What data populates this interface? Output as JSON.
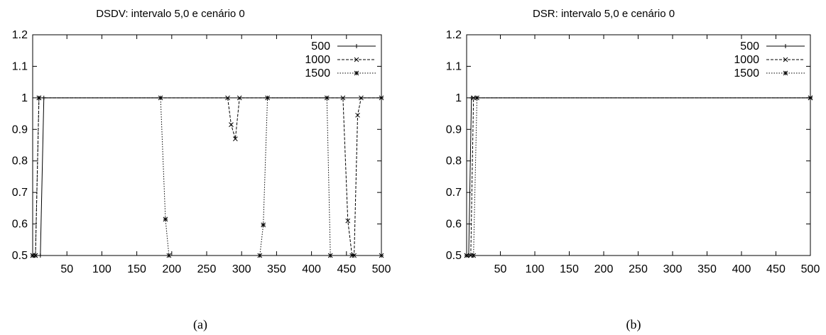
{
  "chart_data": [
    {
      "type": "line",
      "title": "DSDV: intervalo 5,0 e cenário 0",
      "caption": "(a)",
      "xlim": [
        1,
        500
      ],
      "ylim": [
        0.5,
        1.2
      ],
      "xticks": [
        50,
        100,
        150,
        200,
        250,
        300,
        350,
        400,
        450,
        500
      ],
      "yticks": [
        0.5,
        0.6,
        0.7,
        0.8,
        0.9,
        1,
        1.1,
        1.2
      ],
      "legend_position": "top-right",
      "series": [
        {
          "name": "500",
          "dash": "solid",
          "marker": "plus",
          "points": [
            [
              1,
              0.5
            ],
            [
              12,
              0.5
            ],
            [
              17,
              1
            ],
            [
              500,
              1
            ]
          ]
        },
        {
          "name": "1000",
          "dash": "dashed",
          "marker": "cross",
          "points": [
            [
              1,
              0.5
            ],
            [
              5,
              0.5
            ],
            [
              10,
              1
            ],
            [
              280,
              1
            ],
            [
              285,
              0.915
            ],
            [
              291,
              0.87
            ],
            [
              297,
              1
            ],
            [
              445,
              1
            ],
            [
              452,
              0.61
            ],
            [
              458,
              0.5
            ],
            [
              461,
              0.5
            ],
            [
              466,
              0.945
            ],
            [
              471,
              1
            ],
            [
              500,
              1
            ]
          ]
        },
        {
          "name": "1500",
          "dash": "dotted",
          "marker": "star",
          "points": [
            [
              1,
              0.5
            ],
            [
              5,
              0.5
            ],
            [
              10,
              1
            ],
            [
              184,
              1
            ],
            [
              191,
              0.615
            ],
            [
              196,
              0.5
            ],
            [
              326,
              0.5
            ],
            [
              331,
              0.597
            ],
            [
              337,
              1
            ],
            [
              422,
              1
            ],
            [
              427,
              0.5
            ],
            [
              500,
              0.5
            ]
          ]
        }
      ]
    },
    {
      "type": "line",
      "title": "DSR: intervalo 5,0 e cenário 0",
      "caption": "(b)",
      "xlim": [
        1,
        500
      ],
      "ylim": [
        0.5,
        1.2
      ],
      "xticks": [
        50,
        100,
        150,
        200,
        250,
        300,
        350,
        400,
        450,
        500
      ],
      "yticks": [
        0.5,
        0.6,
        0.7,
        0.8,
        0.9,
        1,
        1.1,
        1.2
      ],
      "legend_position": "top-right",
      "series": [
        {
          "name": "500",
          "dash": "solid",
          "marker": "plus",
          "points": [
            [
              1,
              0.5
            ],
            [
              4,
              0.5
            ],
            [
              8,
              1
            ],
            [
              500,
              1
            ]
          ]
        },
        {
          "name": "1000",
          "dash": "dashed",
          "marker": "cross",
          "points": [
            [
              1,
              0.5
            ],
            [
              7,
              0.5
            ],
            [
              11,
              1
            ],
            [
              500,
              1
            ]
          ]
        },
        {
          "name": "1500",
          "dash": "dotted",
          "marker": "star",
          "points": [
            [
              1,
              0.5
            ],
            [
              11,
              0.5
            ],
            [
              16,
              1
            ],
            [
              500,
              1
            ]
          ]
        }
      ]
    }
  ]
}
